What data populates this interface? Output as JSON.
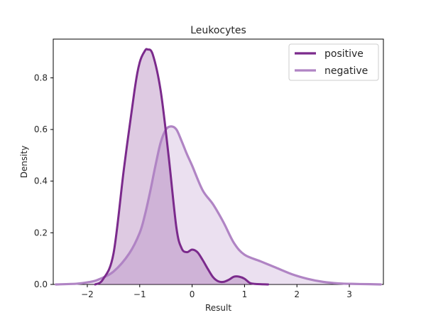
{
  "chart_data": {
    "type": "area",
    "title": "Leukocytes",
    "xlabel": "Result",
    "ylabel": "Density",
    "xlim": [
      -2.65,
      3.65
    ],
    "ylim": [
      0,
      0.95
    ],
    "x_ticks": [
      -2,
      -1,
      0,
      1,
      2,
      3
    ],
    "x_tick_labels": [
      "−2",
      "−1",
      "0",
      "1",
      "2",
      "3"
    ],
    "y_ticks": [
      0.0,
      0.2,
      0.4,
      0.6,
      0.8
    ],
    "y_tick_labels": [
      "0.0",
      "0.2",
      "0.4",
      "0.6",
      "0.8"
    ],
    "grid": false,
    "legend_position": "top-right",
    "series": [
      {
        "name": "positive",
        "color": "#7b2a8c",
        "fill_opacity": 0.25,
        "x": [
          -1.85,
          -1.7,
          -1.5,
          -1.3,
          -1.1,
          -1.0,
          -0.9,
          -0.85,
          -0.75,
          -0.6,
          -0.45,
          -0.3,
          -0.2,
          -0.1,
          0.0,
          0.1,
          0.2,
          0.3,
          0.4,
          0.5,
          0.6,
          0.7,
          0.8,
          0.9,
          1.0,
          1.1,
          1.2,
          1.45
        ],
        "y": [
          0.0,
          0.02,
          0.12,
          0.45,
          0.75,
          0.86,
          0.905,
          0.91,
          0.89,
          0.75,
          0.5,
          0.22,
          0.14,
          0.125,
          0.135,
          0.125,
          0.095,
          0.06,
          0.028,
          0.012,
          0.01,
          0.018,
          0.03,
          0.03,
          0.022,
          0.006,
          0.002,
          0.0
        ]
      },
      {
        "name": "negative",
        "color": "#b084c4",
        "fill_opacity": 0.25,
        "x": [
          -2.6,
          -2.2,
          -2.0,
          -1.8,
          -1.5,
          -1.2,
          -1.0,
          -0.9,
          -0.8,
          -0.7,
          -0.6,
          -0.5,
          -0.4,
          -0.3,
          -0.2,
          -0.1,
          0.0,
          0.2,
          0.4,
          0.6,
          0.8,
          1.0,
          1.3,
          1.6,
          1.9,
          2.2,
          2.5,
          2.8,
          3.1,
          3.4,
          3.6
        ],
        "y": [
          0.0,
          0.003,
          0.008,
          0.018,
          0.05,
          0.12,
          0.2,
          0.27,
          0.36,
          0.46,
          0.55,
          0.6,
          0.612,
          0.6,
          0.555,
          0.505,
          0.46,
          0.365,
          0.31,
          0.24,
          0.16,
          0.115,
          0.09,
          0.065,
          0.04,
          0.022,
          0.01,
          0.004,
          0.002,
          0.001,
          0.0
        ]
      }
    ]
  }
}
